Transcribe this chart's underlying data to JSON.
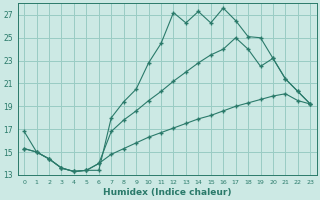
{
  "xlabel": "Humidex (Indice chaleur)",
  "background_color": "#cce9e4",
  "grid_color": "#99ccc4",
  "line_color": "#2a7a6a",
  "xlim": [
    -0.5,
    23.5
  ],
  "ylim": [
    13,
    28
  ],
  "xticks": [
    0,
    1,
    2,
    3,
    4,
    5,
    6,
    7,
    8,
    9,
    10,
    11,
    12,
    13,
    14,
    15,
    16,
    17,
    18,
    19,
    20,
    21,
    22,
    23
  ],
  "yticks": [
    13,
    15,
    17,
    19,
    21,
    23,
    25,
    27
  ],
  "series1_x": [
    0,
    1,
    2,
    3,
    4,
    5,
    6,
    7,
    8,
    9,
    10,
    11,
    12,
    13,
    14,
    15,
    16,
    17,
    18,
    19,
    20,
    21,
    22,
    23
  ],
  "series1_y": [
    16.8,
    15.0,
    14.4,
    13.6,
    13.3,
    13.4,
    13.4,
    18.0,
    19.4,
    20.5,
    22.8,
    24.5,
    27.2,
    26.3,
    27.3,
    26.3,
    27.6,
    26.5,
    25.1,
    25.0,
    23.2,
    21.4,
    20.3,
    19.2
  ],
  "series2_x": [
    0,
    1,
    2,
    3,
    4,
    5,
    6,
    7,
    8,
    9,
    10,
    11,
    12,
    13,
    14,
    15,
    16,
    17,
    18,
    19,
    20,
    21,
    22,
    23
  ],
  "series2_y": [
    15.3,
    15.0,
    14.4,
    13.6,
    13.3,
    13.4,
    14.0,
    16.8,
    17.8,
    18.6,
    19.5,
    20.3,
    21.2,
    22.0,
    22.8,
    23.5,
    24.0,
    25.0,
    24.0,
    22.5,
    23.2,
    21.4,
    20.3,
    19.2
  ],
  "series3_x": [
    0,
    1,
    2,
    3,
    4,
    5,
    6,
    7,
    8,
    9,
    10,
    11,
    12,
    13,
    14,
    15,
    16,
    17,
    18,
    19,
    20,
    21,
    22,
    23
  ],
  "series3_y": [
    15.3,
    15.0,
    14.4,
    13.6,
    13.3,
    13.4,
    14.0,
    14.8,
    15.3,
    15.8,
    16.3,
    16.7,
    17.1,
    17.5,
    17.9,
    18.2,
    18.6,
    19.0,
    19.3,
    19.6,
    19.9,
    20.1,
    19.5,
    19.2
  ]
}
